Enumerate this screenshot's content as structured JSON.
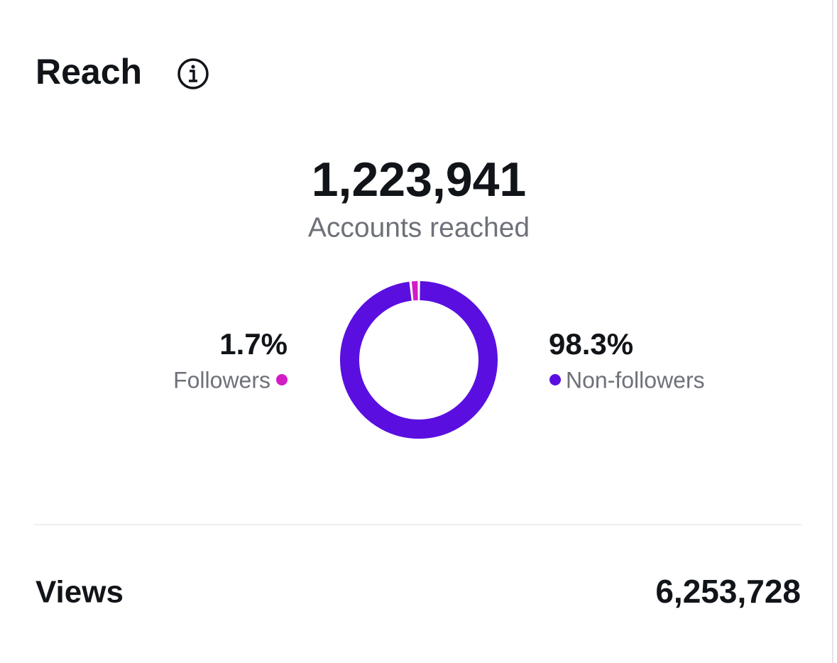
{
  "header": {
    "title": "Reach"
  },
  "reach": {
    "value": "1,223,941",
    "label": "Accounts reached"
  },
  "chart_data": {
    "type": "donut",
    "categories": [
      "Followers",
      "Non-followers"
    ],
    "values": [
      1.7,
      98.3
    ],
    "value_labels": [
      "1.7%",
      "98.3%"
    ],
    "colors": [
      "#d21cc4",
      "#5a0fe0"
    ]
  },
  "views": {
    "label": "Views",
    "value": "6,253,728"
  }
}
